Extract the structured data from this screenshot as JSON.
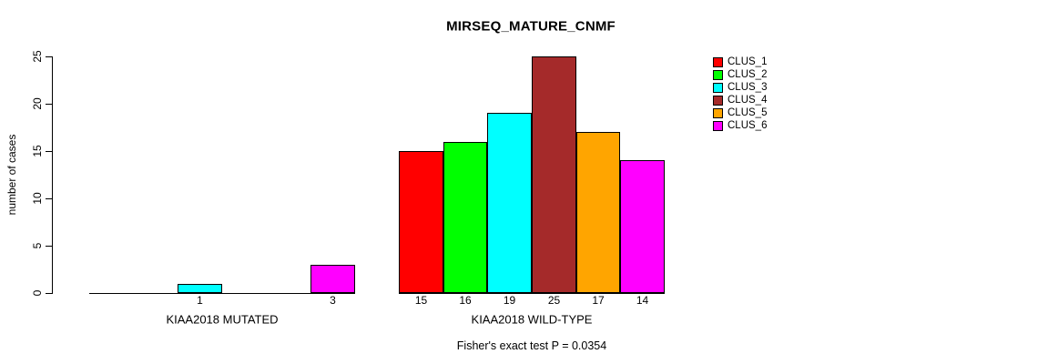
{
  "chart_data": {
    "type": "bar",
    "title": "MIRSEQ_MATURE_CNMF",
    "ylabel": "number of cases",
    "ylim": [
      0,
      25
    ],
    "yticks": [
      0,
      5,
      10,
      15,
      20,
      25
    ],
    "grid": false,
    "legend_position": "top-right",
    "categories": [
      "KIAA2018 MUTATED",
      "KIAA2018 WILD-TYPE"
    ],
    "series": [
      {
        "name": "CLUS_1",
        "color": "#FF0000",
        "values": [
          0,
          15
        ]
      },
      {
        "name": "CLUS_2",
        "color": "#00FF00",
        "values": [
          0,
          16
        ]
      },
      {
        "name": "CLUS_3",
        "color": "#00FFFF",
        "values": [
          1,
          19
        ]
      },
      {
        "name": "CLUS_4",
        "color": "#A52A2A",
        "values": [
          0,
          25
        ]
      },
      {
        "name": "CLUS_5",
        "color": "#FFA500",
        "values": [
          0,
          17
        ]
      },
      {
        "name": "CLUS_6",
        "color": "#FF00FF",
        "values": [
          3,
          14
        ]
      }
    ],
    "groups": [
      {
        "label": "KIAA2018 MUTATED",
        "values": [
          0,
          0,
          1,
          0,
          0,
          3
        ],
        "bar_labels": [
          "",
          "",
          "1",
          "",
          "",
          "3"
        ]
      },
      {
        "label": "KIAA2018 WILD-TYPE",
        "values": [
          15,
          16,
          19,
          25,
          17,
          14
        ],
        "bar_labels": [
          "15",
          "16",
          "19",
          "25",
          "17",
          "14"
        ]
      }
    ],
    "subtitle": "Fisher's exact test P = 0.0354"
  }
}
